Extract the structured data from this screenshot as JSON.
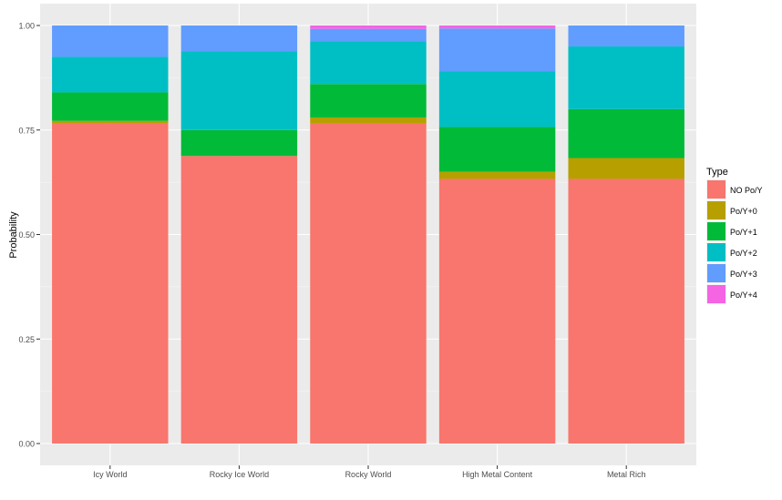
{
  "chart_data": {
    "type": "bar",
    "stacked": true,
    "ylabel": "Probability",
    "xlabel": "",
    "ylim": [
      0,
      1
    ],
    "y_ticks": [
      "0.00",
      "0.25",
      "0.50",
      "0.75",
      "1.00"
    ],
    "categories": [
      "Icy World",
      "Rocky Ice World",
      "Rocky World",
      "High Metal Content",
      "Metal Rich"
    ],
    "legend_title": "Type",
    "legend_position": "right",
    "grid": true,
    "series": [
      {
        "name": "NO Po/Y",
        "color": "#F8766D",
        "values": [
          0.765,
          0.688,
          0.765,
          0.633,
          0.633
        ]
      },
      {
        "name": "Po/Y+0",
        "color": "#B79F00",
        "values": [
          0.007,
          0.0,
          0.015,
          0.017,
          0.05
        ]
      },
      {
        "name": "Po/Y+1",
        "color": "#00BA38",
        "values": [
          0.068,
          0.062,
          0.08,
          0.107,
          0.117
        ]
      },
      {
        "name": "Po/Y+2",
        "color": "#00BFC4",
        "values": [
          0.085,
          0.188,
          0.102,
          0.133,
          0.15
        ]
      },
      {
        "name": "Po/Y+3",
        "color": "#619CFF",
        "values": [
          0.075,
          0.062,
          0.03,
          0.103,
          0.05
        ]
      },
      {
        "name": "Po/Y+4",
        "color": "#F564E3",
        "values": [
          0.0,
          0.0,
          0.008,
          0.007,
          0.0
        ]
      }
    ]
  }
}
